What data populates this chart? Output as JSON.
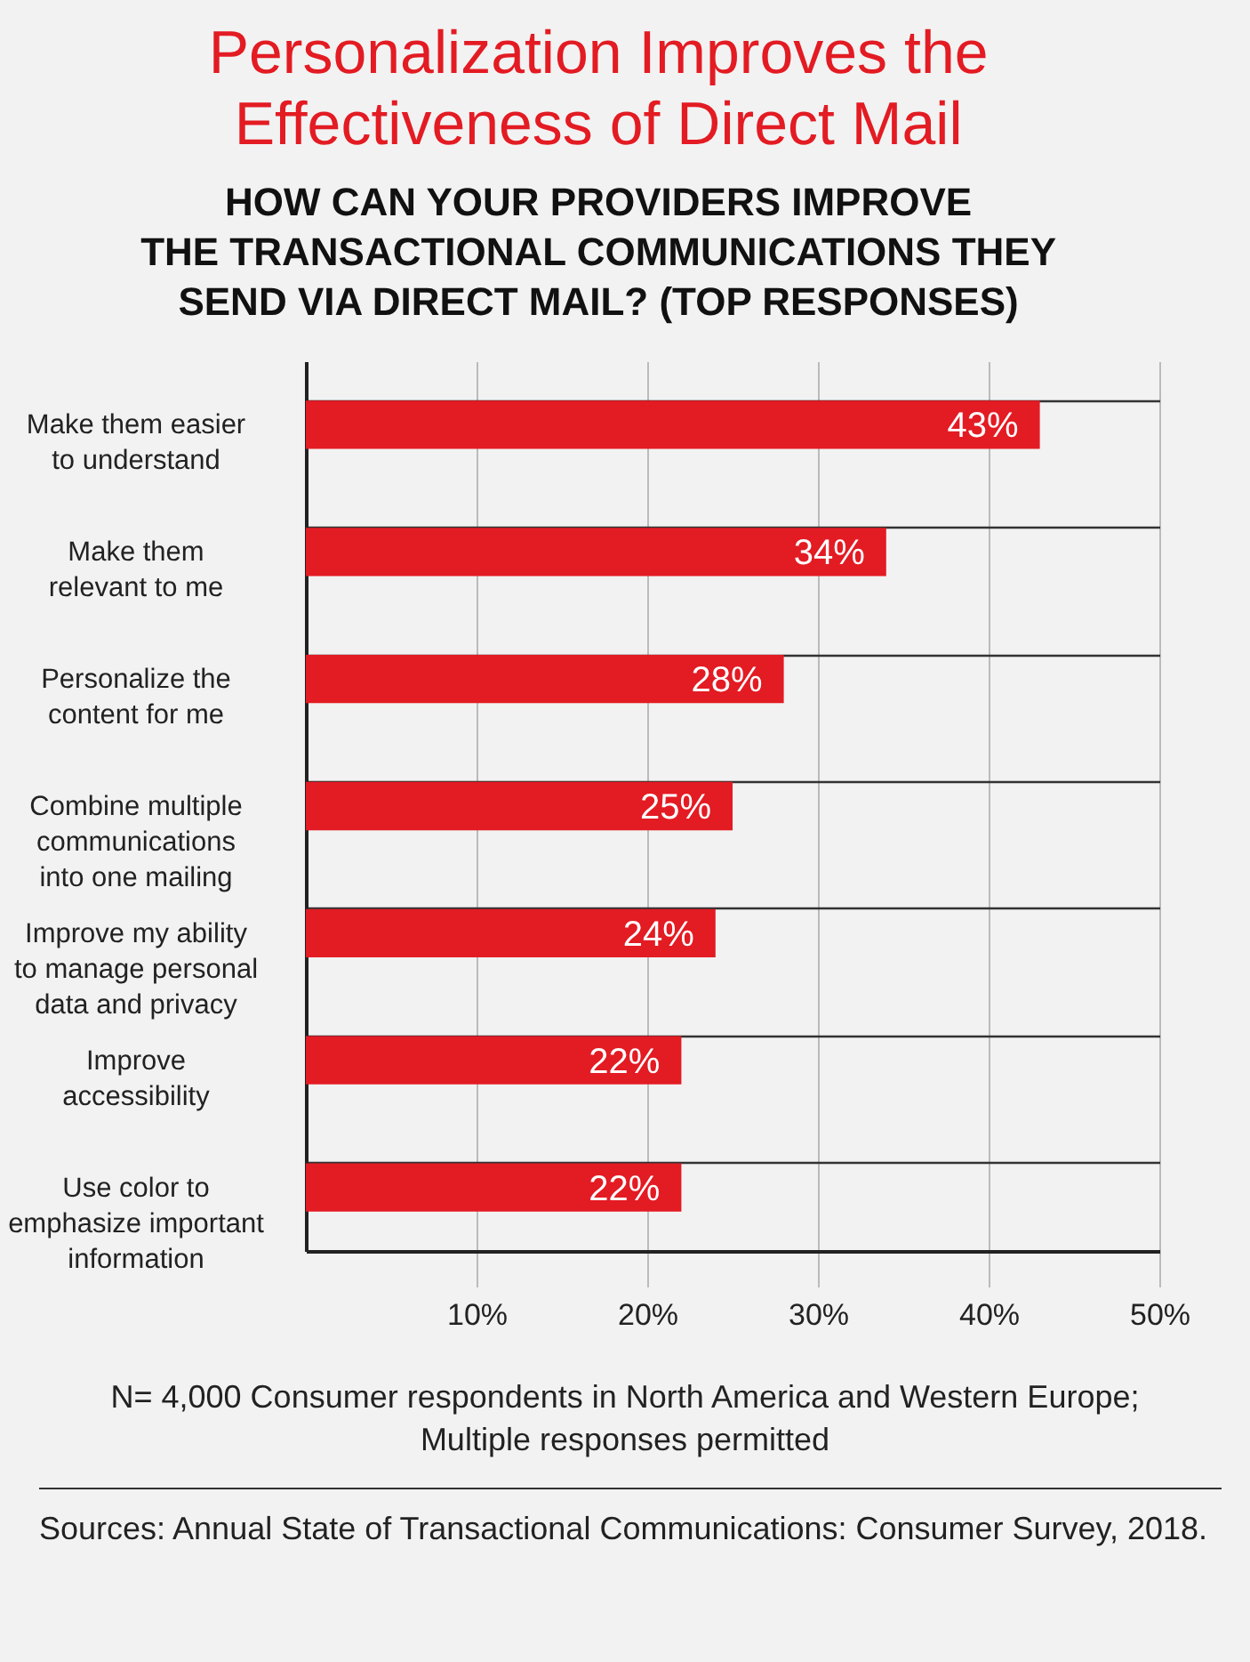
{
  "chart_data": {
    "type": "bar",
    "orientation": "horizontal",
    "title": "Personalization Improves the\nEffectiveness of Direct Mail",
    "subtitle": "HOW CAN YOUR PROVIDERS IMPROVE\nTHE TRANSACTIONAL COMMUNICATIONS THEY\nSEND VIA DIRECT MAIL? (TOP RESPONSES)",
    "categories": [
      "Make them easier\nto understand",
      "Make them\nrelevant to me",
      "Personalize the\ncontent for me",
      "Combine multiple\ncommunications\ninto one mailing",
      "Improve my ability\nto manage personal\ndata and privacy",
      "Improve\naccessibility",
      "Use color to\nemphasize important\ninformation"
    ],
    "values": [
      43,
      34,
      28,
      25,
      24,
      22,
      22
    ],
    "color": "#e31b23",
    "xlim": [
      0,
      50
    ],
    "xticks": [
      {
        "value": 10,
        "label": "10%"
      },
      {
        "value": 20,
        "label": "20%"
      },
      {
        "value": 30,
        "label": "30%"
      },
      {
        "value": 40,
        "label": "40%"
      },
      {
        "value": 50,
        "label": "50%"
      }
    ],
    "value_labels": [
      "43%",
      "34%",
      "28%",
      "25%",
      "24%",
      "22%",
      "22%"
    ],
    "grid": true,
    "annotations": [
      "N= 4,000 Consumer respondents in North America and Western Europe;\nMultiple responses permitted",
      "Sources: Annual State of Transactional Communications: Consumer Survey, 2018."
    ]
  }
}
